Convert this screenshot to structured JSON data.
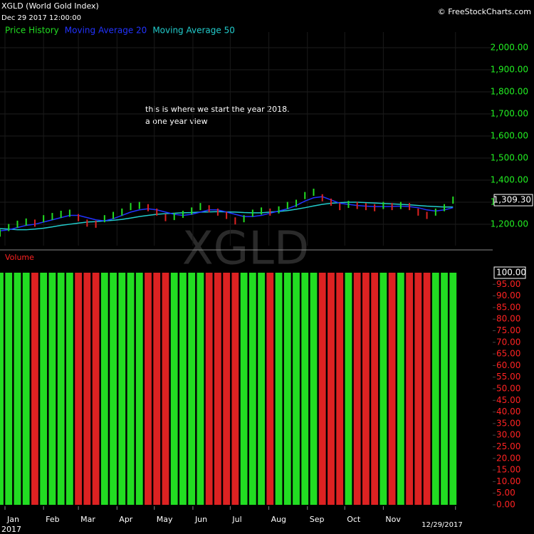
{
  "header": {
    "title": "XGLD (World Gold Index)",
    "datetime": "Dec 29 2017 12:00:00",
    "source": "© FreeStockCharts.com"
  },
  "chart_data": [
    {
      "type": "price",
      "watermark": "XGLD",
      "annotation": [
        "this is where we start the year 2018.",
        "a one year view"
      ],
      "last_label": "1,309.30",
      "up_color": "#22dd22",
      "down_color": "#dd2222",
      "x": [
        -3,
        4,
        11,
        18,
        25,
        32,
        39,
        46,
        53,
        60,
        67,
        74,
        81,
        88,
        95,
        102,
        109,
        116,
        123,
        130,
        137,
        144,
        151,
        158,
        165,
        172,
        179,
        186,
        193,
        200,
        207,
        214,
        221,
        228,
        235,
        242,
        249,
        256,
        263,
        270,
        277,
        284,
        291,
        298,
        305,
        312,
        319,
        326,
        333,
        340,
        347,
        354,
        361
      ],
      "xlim": [
        -3,
        370
      ],
      "xticks": [
        {
          "value": 1,
          "label": "Jan"
        },
        {
          "value": 32,
          "label": "Feb"
        },
        {
          "value": 60,
          "label": "Mar"
        },
        {
          "value": 91,
          "label": "Apr"
        },
        {
          "value": 121,
          "label": "May"
        },
        {
          "value": 152,
          "label": "Jun"
        },
        {
          "value": 182,
          "label": "Jul"
        },
        {
          "value": 213,
          "label": "Aug"
        },
        {
          "value": 244,
          "label": "Sep"
        },
        {
          "value": 274,
          "label": "Oct"
        },
        {
          "value": 305,
          "label": "Nov"
        },
        {
          "value": 363,
          "label": "12/29/2017"
        }
      ],
      "year_label": "2017",
      "ylim": [
        1103,
        2071
      ],
      "yticks": [
        {
          "value": 1200,
          "label": "1,200.00"
        },
        {
          "value": 1300,
          "label": "1,300.00"
        },
        {
          "value": 1400,
          "label": "1,400.00"
        },
        {
          "value": 1500,
          "label": "1,500.00"
        },
        {
          "value": 1600,
          "label": "1,600.00"
        },
        {
          "value": 1700,
          "label": "1,700.00"
        },
        {
          "value": 1800,
          "label": "1,800.00"
        },
        {
          "value": 1900,
          "label": "1,900.00"
        },
        {
          "value": 2000,
          "label": "2,000.00"
        }
      ],
      "grid": true,
      "series": [
        {
          "name": "Price History",
          "color": "#22dd22",
          "values": [
            1160,
            1185,
            1200,
            1210,
            1205,
            1225,
            1235,
            1245,
            1250,
            1230,
            1205,
            1200,
            1225,
            1240,
            1255,
            1280,
            1285,
            1275,
            1255,
            1230,
            1235,
            1245,
            1260,
            1280,
            1270,
            1255,
            1240,
            1215,
            1225,
            1250,
            1260,
            1255,
            1265,
            1285,
            1295,
            1330,
            1345,
            1320,
            1300,
            1280,
            1290,
            1285,
            1280,
            1275,
            1285,
            1280,
            1285,
            1280,
            1255,
            1240,
            1255,
            1275,
            1309.3
          ]
        },
        {
          "name": "Moving Average 20",
          "color": "#2233ff",
          "values": [
            1170,
            1175,
            1185,
            1195,
            1200,
            1210,
            1220,
            1230,
            1240,
            1240,
            1230,
            1220,
            1215,
            1225,
            1240,
            1255,
            1265,
            1270,
            1265,
            1255,
            1245,
            1240,
            1245,
            1255,
            1265,
            1265,
            1255,
            1245,
            1235,
            1235,
            1240,
            1250,
            1260,
            1270,
            1285,
            1305,
            1320,
            1325,
            1310,
            1295,
            1290,
            1285,
            1282,
            1280,
            1280,
            1281,
            1282,
            1280,
            1275,
            1265,
            1260,
            1265,
            1275
          ]
        },
        {
          "name": "Moving Average 50",
          "color": "#22cccc",
          "values": [
            1180,
            1178,
            1175,
            1175,
            1178,
            1182,
            1188,
            1195,
            1200,
            1205,
            1210,
            1212,
            1215,
            1218,
            1222,
            1228,
            1235,
            1240,
            1245,
            1248,
            1250,
            1252,
            1253,
            1255,
            1256,
            1257,
            1256,
            1255,
            1253,
            1252,
            1252,
            1255,
            1258,
            1262,
            1268,
            1275,
            1283,
            1290,
            1295,
            1298,
            1300,
            1300,
            1298,
            1296,
            1294,
            1292,
            1290,
            1288,
            1285,
            1282,
            1280,
            1278,
            1278
          ]
        }
      ]
    },
    {
      "type": "volume",
      "title": "Volume",
      "ylim": [
        0,
        100
      ],
      "yticks": [
        {
          "value": 0,
          "label": "0.00"
        },
        {
          "value": 5,
          "label": "5.00"
        },
        {
          "value": 10,
          "label": "10.00"
        },
        {
          "value": 15,
          "label": "15.00"
        },
        {
          "value": 20,
          "label": "20.00"
        },
        {
          "value": 25,
          "label": "25.00"
        },
        {
          "value": 30,
          "label": "30.00"
        },
        {
          "value": 35,
          "label": "35.00"
        },
        {
          "value": 40,
          "label": "40.00"
        },
        {
          "value": 45,
          "label": "45.00"
        },
        {
          "value": 50,
          "label": "50.00"
        },
        {
          "value": 55,
          "label": "55.00"
        },
        {
          "value": 60,
          "label": "60.00"
        },
        {
          "value": 65,
          "label": "65.00"
        },
        {
          "value": 70,
          "label": "70.00"
        },
        {
          "value": 75,
          "label": "75.00"
        },
        {
          "value": 80,
          "label": "80.00"
        },
        {
          "value": 85,
          "label": "85.00"
        },
        {
          "value": 90,
          "label": "90.00"
        },
        {
          "value": 95,
          "label": "95.00"
        },
        {
          "value": 100,
          "label": "100.00"
        }
      ],
      "values": [
        100,
        100,
        100,
        100,
        100,
        100,
        100,
        100,
        100,
        100,
        100,
        100,
        100,
        100,
        100,
        100,
        100,
        100,
        100,
        100,
        100,
        100,
        100,
        100,
        100,
        100,
        100,
        100,
        100,
        100,
        100,
        100,
        100,
        100,
        100,
        100,
        100,
        100,
        100,
        100,
        100,
        100,
        100,
        100,
        100,
        100,
        100,
        100,
        100,
        100,
        100,
        100,
        100
      ]
    }
  ]
}
